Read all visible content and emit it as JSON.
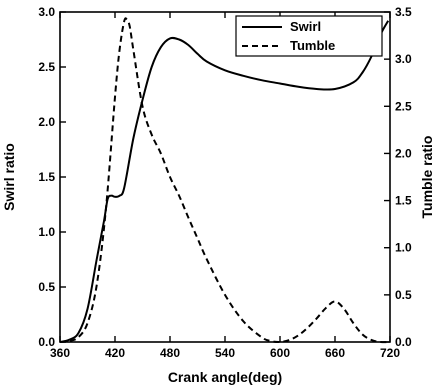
{
  "chart_data": {
    "type": "line",
    "xlabel": "Crank angle(deg)",
    "ylabel": "Swirl ratio",
    "y2label": "Tumble ratio",
    "xlim": [
      360,
      720
    ],
    "ylim": [
      0,
      3.0
    ],
    "y2lim": [
      0,
      3.5
    ],
    "x_ticks": [
      "360",
      "420",
      "480",
      "540",
      "600",
      "660",
      "720"
    ],
    "y_ticks": [
      "0.0",
      "0.5",
      "1.0",
      "1.5",
      "2.0",
      "2.5",
      "3.0"
    ],
    "y2_ticks": [
      "0.0",
      "0.5",
      "1.0",
      "1.5",
      "2.0",
      "2.5",
      "3.0",
      "3.5"
    ],
    "legend_position": "top-right",
    "series": [
      {
        "name": "Swirl",
        "axis": "left",
        "style": "solid",
        "x": [
          360,
          370,
          380,
          390,
          400,
          408,
          412,
          416,
          420,
          425,
          430,
          440,
          450,
          460,
          470,
          480,
          490,
          500,
          510,
          520,
          540,
          560,
          580,
          600,
          620,
          640,
          660,
          680,
          690,
          700,
          710,
          718
        ],
        "y": [
          0.0,
          0.02,
          0.08,
          0.3,
          0.75,
          1.1,
          1.3,
          1.33,
          1.32,
          1.33,
          1.4,
          1.85,
          2.2,
          2.5,
          2.68,
          2.76,
          2.75,
          2.7,
          2.62,
          2.55,
          2.47,
          2.42,
          2.38,
          2.35,
          2.32,
          2.3,
          2.3,
          2.36,
          2.45,
          2.6,
          2.8,
          2.92
        ]
      },
      {
        "name": "Tumble",
        "axis": "right",
        "style": "dashed",
        "x": [
          360,
          370,
          380,
          390,
          400,
          410,
          420,
          425,
          430,
          433,
          436,
          440,
          450,
          460,
          470,
          480,
          490,
          500,
          510,
          520,
          540,
          560,
          580,
          590,
          600,
          610,
          620,
          630,
          640,
          650,
          660,
          670,
          680,
          690,
          700,
          710,
          720
        ],
        "y": [
          0.0,
          0.01,
          0.05,
          0.2,
          0.6,
          1.4,
          2.6,
          3.1,
          3.4,
          3.42,
          3.35,
          3.1,
          2.5,
          2.2,
          2.0,
          1.75,
          1.55,
          1.32,
          1.1,
          0.88,
          0.5,
          0.22,
          0.05,
          0.01,
          0.0,
          0.02,
          0.07,
          0.15,
          0.25,
          0.36,
          0.43,
          0.35,
          0.2,
          0.08,
          0.02,
          0.0,
          0.0
        ]
      }
    ]
  }
}
